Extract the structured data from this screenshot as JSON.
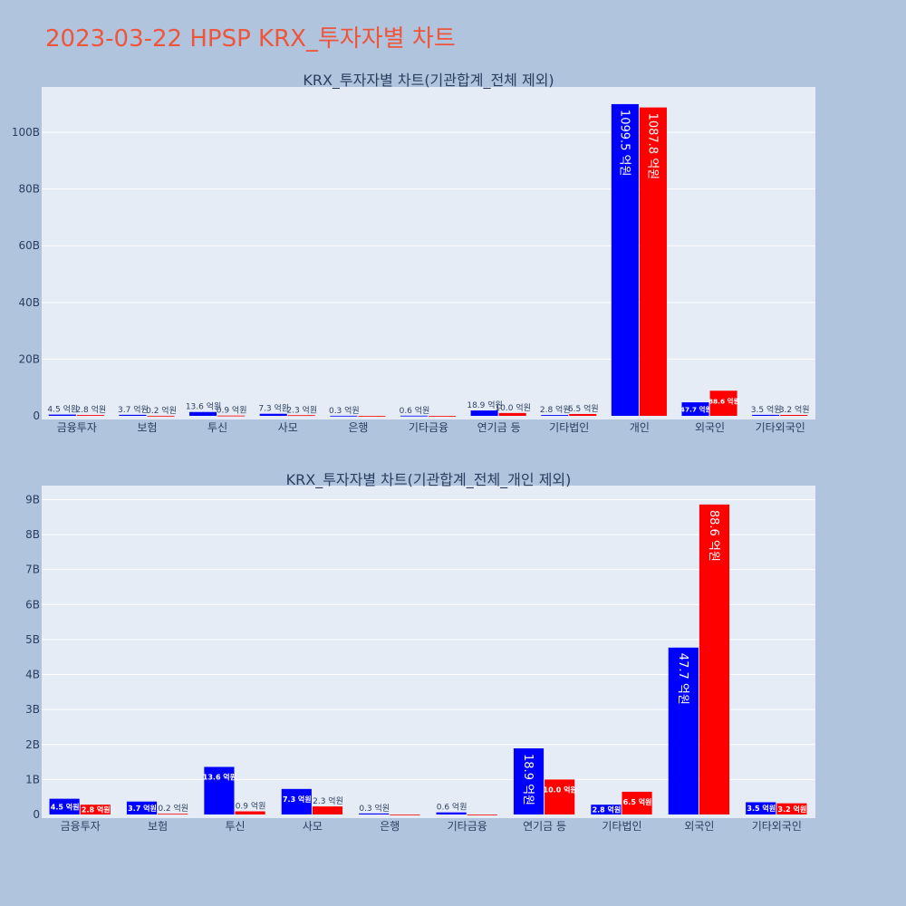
{
  "title": "2023-03-22 HPSP KRX_투자자별 차트",
  "colors": {
    "buy": "#0000ff",
    "sell": "#ff0000",
    "title": "#ef553b"
  },
  "chart_data": [
    {
      "type": "bar",
      "title": "KRX_투자자별 차트(기관합계_전체 제외)",
      "categories": [
        "금융투자",
        "보험",
        "투신",
        "사모",
        "은행",
        "기타금융",
        "연기금 등",
        "기타법인",
        "개인",
        "외국인",
        "기타외국인"
      ],
      "series": [
        {
          "color": "#0000ff",
          "values": [
            0.45,
            0.37,
            1.36,
            0.73,
            0.03,
            0.06,
            1.89,
            0.28,
            109.95,
            4.77,
            0.35
          ],
          "labels": [
            "4.5 억원",
            "3.7 억원",
            "13.6 억원",
            "7.3 억원",
            "0.3 억원",
            "0.6 억원",
            "18.9 억원",
            "2.8 억원",
            "1099.5 억원",
            "47.7 억원",
            "3.5 억원"
          ]
        },
        {
          "color": "#ff0000",
          "values": [
            0.28,
            0.02,
            0.09,
            0.23,
            0,
            0,
            1.0,
            0.65,
            108.78,
            8.86,
            0.32
          ],
          "labels": [
            "2.8 억원",
            "0.2 억원",
            "0.9 억원",
            "2.3 억원",
            "",
            "",
            "10.0 억원",
            "6.5 억원",
            "1087.8 억원",
            "88.6 억원",
            "3.2 억원"
          ]
        }
      ],
      "ylim": [
        0,
        116
      ],
      "yticks": [
        0,
        20,
        40,
        60,
        80,
        100
      ],
      "ytick_labels": [
        "0",
        "20B",
        "40B",
        "60B",
        "80B",
        "100B"
      ],
      "grid": true
    },
    {
      "type": "bar",
      "title": "KRX_투자자별 차트(기관합계_전체_개인 제외)",
      "categories": [
        "금융투자",
        "보험",
        "투신",
        "사모",
        "은행",
        "기타금융",
        "연기금 등",
        "기타법인",
        "외국인",
        "기타외국인"
      ],
      "series": [
        {
          "color": "#0000ff",
          "values": [
            0.45,
            0.37,
            1.36,
            0.73,
            0.03,
            0.06,
            1.89,
            0.28,
            4.77,
            0.35
          ],
          "labels": [
            "4.5 억원",
            "3.7 억원",
            "13.6 억원",
            "7.3 억원",
            "0.3 억원",
            "0.6 억원",
            "18.9 억원",
            "2.8 억원",
            "47.7 억원",
            "3.5 억원"
          ]
        },
        {
          "color": "#ff0000",
          "values": [
            0.28,
            0.02,
            0.09,
            0.23,
            0,
            0,
            1.0,
            0.65,
            8.86,
            0.32
          ],
          "labels": [
            "2.8 억원",
            "0.2 억원",
            "0.9 억원",
            "2.3 억원",
            "",
            "",
            "10.0 억원",
            "6.5 억원",
            "88.6 억원",
            "3.2 억원"
          ]
        }
      ],
      "ylim": [
        0,
        9.4
      ],
      "yticks": [
        0,
        1,
        2,
        3,
        4,
        5,
        6,
        7,
        8,
        9
      ],
      "ytick_labels": [
        "0",
        "1B",
        "2B",
        "3B",
        "4B",
        "5B",
        "6B",
        "7B",
        "8B",
        "9B"
      ],
      "grid": true
    }
  ]
}
